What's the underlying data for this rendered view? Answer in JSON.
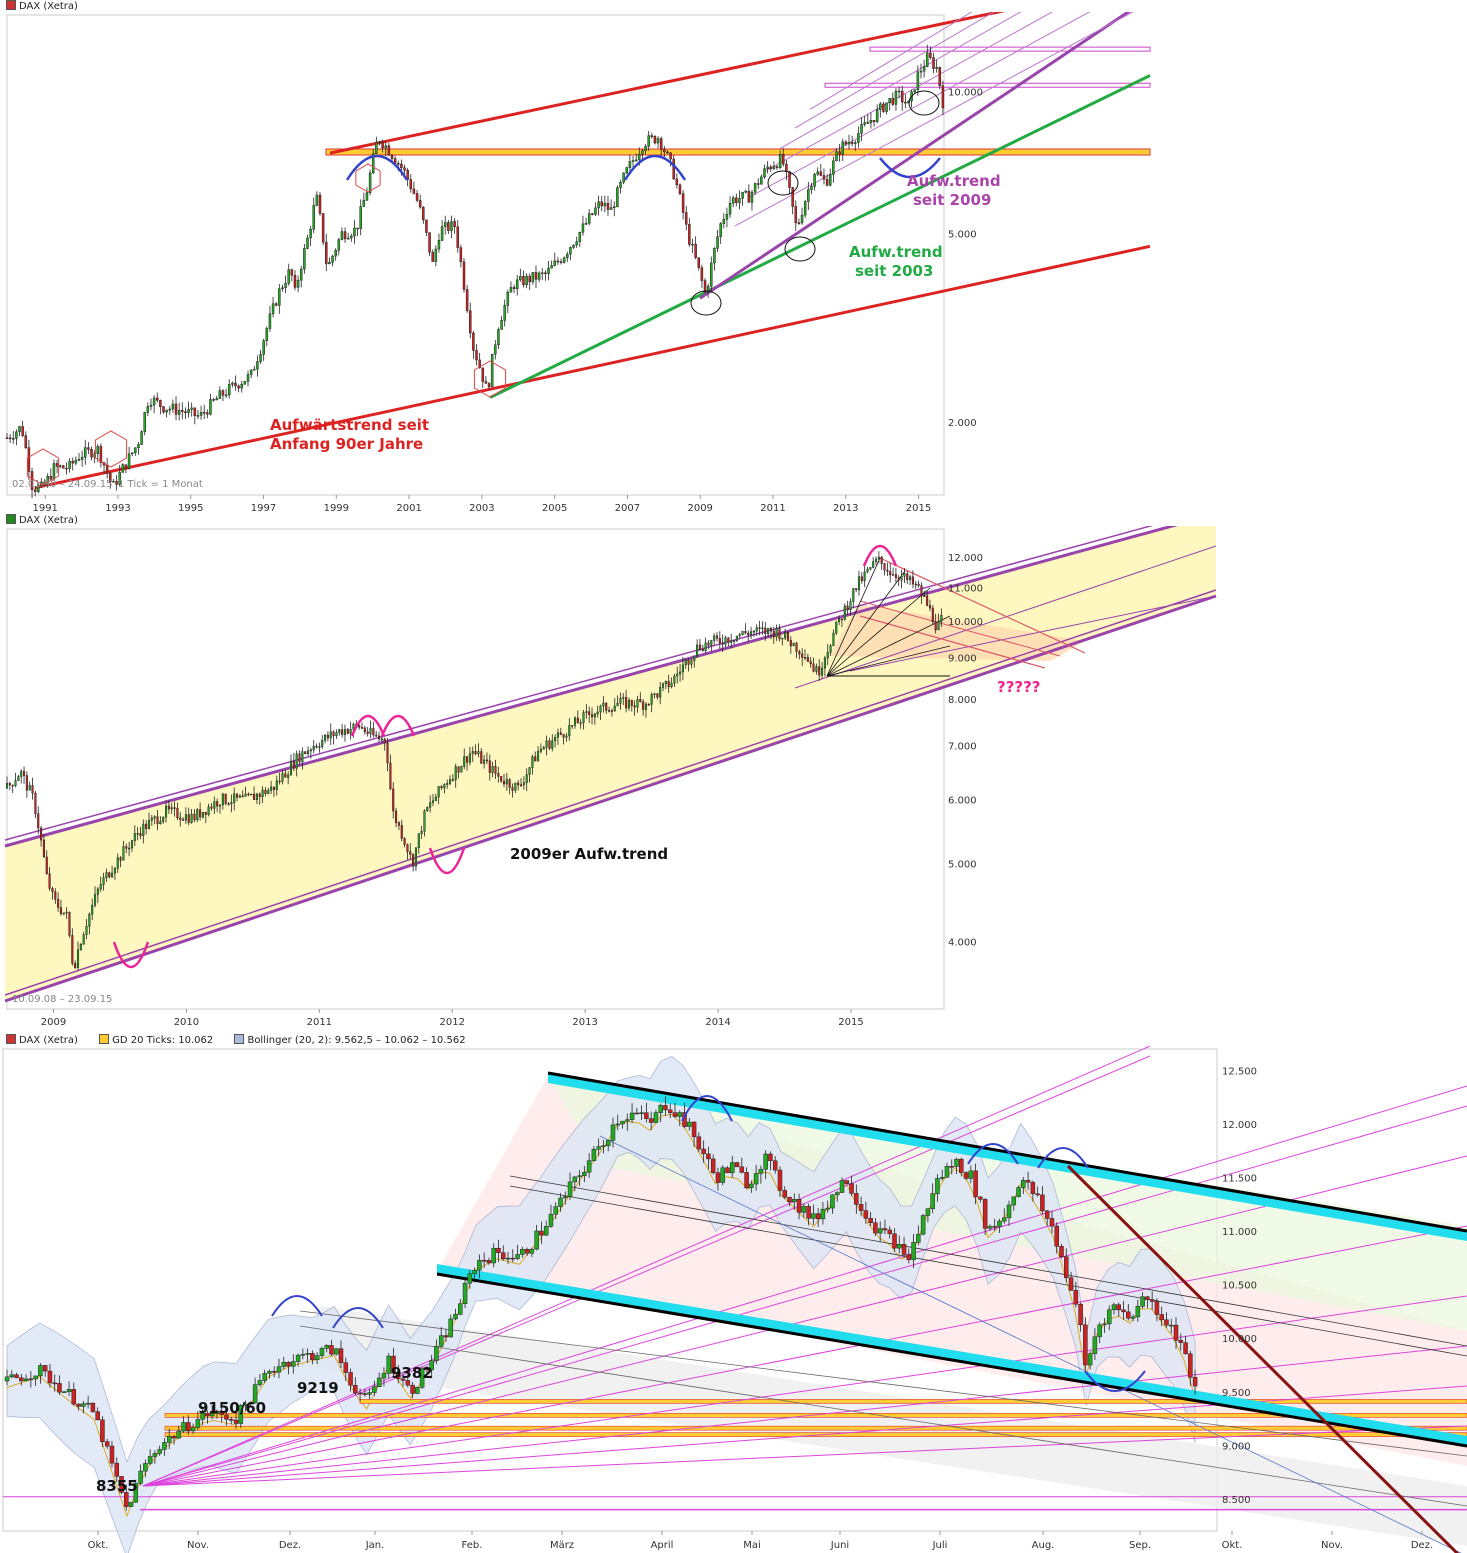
{
  "colors": {
    "candle_up": "#22aa22",
    "candle_down": "#cc2222",
    "trend_red": "#dd2222",
    "trend_purple": "#9944aa",
    "trend_green": "#22aa44",
    "fan_magenta": "#dd44dd",
    "support_fill": "#ffcc33",
    "channel_fill": "#fff7c0",
    "cyan_band": "#22ddee",
    "dark_red": "#881111",
    "arc_blue": "#3344cc",
    "arc_pink": "#ee2299"
  },
  "chart_data": [
    {
      "type": "candlestick",
      "legend": "DAX (Xetra)",
      "date_range": "02.01.90 – 24.09.15",
      "interval": "1 Tick = 1 Monat",
      "scale": "log",
      "x_ticks": [
        "1991",
        "1993",
        "1995",
        "1997",
        "1999",
        "2001",
        "2003",
        "2005",
        "2007",
        "2009",
        "2011",
        "2013",
        "2015"
      ],
      "y_ticks": [
        "10.000",
        "5.000",
        "2.000"
      ],
      "ylim": [
        1400,
        14500
      ],
      "x_range": [
        1990.0,
        2015.75
      ],
      "series": [
        {
          "values": [
            [
              1990.0,
              1850
            ],
            [
              1990.4,
              1950
            ],
            [
              1990.7,
              1450
            ],
            [
              1991.0,
              1450
            ],
            [
              1991.3,
              1600
            ],
            [
              1991.7,
              1600
            ],
            [
              1992.0,
              1700
            ],
            [
              1992.5,
              1750
            ],
            [
              1992.9,
              1450
            ],
            [
              1993.2,
              1600
            ],
            [
              1993.6,
              1800
            ],
            [
              1993.9,
              2250
            ],
            [
              1994.3,
              2150
            ],
            [
              1994.9,
              2100
            ],
            [
              1995.3,
              2050
            ],
            [
              1995.8,
              2250
            ],
            [
              1996.3,
              2400
            ],
            [
              1996.7,
              2500
            ],
            [
              1997.0,
              2900
            ],
            [
              1997.5,
              3800
            ],
            [
              1997.8,
              4200
            ],
            [
              1997.9,
              3700
            ],
            [
              1998.3,
              5000
            ],
            [
              1998.5,
              6000
            ],
            [
              1998.8,
              4200
            ],
            [
              1999.2,
              5000
            ],
            [
              1999.6,
              5100
            ],
            [
              1999.9,
              6200
            ],
            [
              2000.2,
              8000
            ],
            [
              2000.5,
              7500
            ],
            [
              2000.9,
              6800
            ],
            [
              2001.3,
              5800
            ],
            [
              2001.7,
              4300
            ],
            [
              2001.9,
              5100
            ],
            [
              2002.3,
              5200
            ],
            [
              2002.6,
              3700
            ],
            [
              2002.8,
              2900
            ],
            [
              2003.2,
              2300
            ],
            [
              2003.5,
              3200
            ],
            [
              2003.9,
              3900
            ],
            [
              2004.3,
              4000
            ],
            [
              2004.8,
              4100
            ],
            [
              2005.3,
              4500
            ],
            [
              2005.8,
              5100
            ],
            [
              2006.3,
              5800
            ],
            [
              2006.6,
              5600
            ],
            [
              2007.0,
              6700
            ],
            [
              2007.5,
              7800
            ],
            [
              2007.9,
              8000
            ],
            [
              2008.3,
              6800
            ],
            [
              2008.7,
              5000
            ],
            [
              2009.0,
              4200
            ],
            [
              2009.2,
              3700
            ],
            [
              2009.6,
              5200
            ],
            [
              2009.9,
              5900
            ],
            [
              2010.4,
              6000
            ],
            [
              2010.9,
              6900
            ],
            [
              2011.3,
              7200
            ],
            [
              2011.6,
              5600
            ],
            [
              2011.7,
              5100
            ],
            [
              2012.2,
              6800
            ],
            [
              2012.5,
              6400
            ],
            [
              2012.9,
              7600
            ],
            [
              2013.3,
              8000
            ],
            [
              2013.8,
              8800
            ],
            [
              2014.2,
              9500
            ],
            [
              2014.5,
              9800
            ],
            [
              2014.8,
              9300
            ],
            [
              2015.0,
              10700
            ],
            [
              2015.3,
              11800
            ],
            [
              2015.55,
              11200
            ],
            [
              2015.72,
              9500
            ]
          ]
        }
      ],
      "annotations": [
        {
          "text": "Aufwärtstrend seit",
          "color": "#dd2222"
        },
        {
          "text": "Anfang 90er Jahre",
          "color": "#dd2222"
        },
        {
          "text": "Aufw.trend",
          "color": "#aa44aa"
        },
        {
          "text": "seit 2009",
          "color": "#aa44aa"
        },
        {
          "text": "Aufw.trend",
          "color": "#22aa44"
        },
        {
          "text": "seit 2003",
          "color": "#22aa44"
        }
      ]
    },
    {
      "type": "candlestick",
      "legend": "DAX (Xetra)",
      "date_range": "10.09.08 – 23.09.15",
      "scale": "log",
      "x_ticks": [
        "2009",
        "2010",
        "2011",
        "2012",
        "2013",
        "2014",
        "2015"
      ],
      "y_ticks": [
        "12.000",
        "11.000",
        "10.000",
        "9.000",
        "8.000",
        "7.000",
        "6.000",
        "5.000",
        "4.000"
      ],
      "ylim": [
        3300,
        13000
      ],
      "x_range": [
        2008.7,
        2015.75
      ],
      "series": [
        {
          "values": [
            [
              2008.7,
              6200
            ],
            [
              2008.8,
              6500
            ],
            [
              2008.9,
              6000
            ],
            [
              2009.0,
              4800
            ],
            [
              2009.05,
              4500
            ],
            [
              2009.15,
              4300
            ],
            [
              2009.2,
              3700
            ],
            [
              2009.25,
              4000
            ],
            [
              2009.4,
              4700
            ],
            [
              2009.55,
              5100
            ],
            [
              2009.7,
              5500
            ],
            [
              2009.9,
              5800
            ],
            [
              2010.1,
              5700
            ],
            [
              2010.3,
              6000
            ],
            [
              2010.5,
              6000
            ],
            [
              2010.7,
              6200
            ],
            [
              2010.9,
              6800
            ],
            [
              2011.0,
              7000
            ],
            [
              2011.2,
              7300
            ],
            [
              2011.35,
              7400
            ],
            [
              2011.45,
              7200
            ],
            [
              2011.55,
              7100
            ],
            [
              2011.6,
              5800
            ],
            [
              2011.7,
              5300
            ],
            [
              2011.75,
              5000
            ],
            [
              2011.85,
              5800
            ],
            [
              2012.0,
              6300
            ],
            [
              2012.2,
              6900
            ],
            [
              2012.4,
              6400
            ],
            [
              2012.55,
              6200
            ],
            [
              2012.7,
              6900
            ],
            [
              2012.9,
              7300
            ],
            [
              2013.1,
              7700
            ],
            [
              2013.3,
              7900
            ],
            [
              2013.5,
              7900
            ],
            [
              2013.7,
              8400
            ],
            [
              2013.9,
              9300
            ],
            [
              2014.1,
              9500
            ],
            [
              2014.3,
              9700
            ],
            [
              2014.5,
              9700
            ],
            [
              2014.7,
              9100
            ],
            [
              2014.8,
              8600
            ],
            [
              2014.95,
              9900
            ],
            [
              2015.1,
              11100
            ],
            [
              2015.25,
              11900
            ],
            [
              2015.35,
              11500
            ],
            [
              2015.45,
              11300
            ],
            [
              2015.55,
              11000
            ],
            [
              2015.62,
              10500
            ],
            [
              2015.7,
              9800
            ],
            [
              2015.73,
              10000
            ]
          ]
        }
      ],
      "annotations": [
        {
          "text": "?????",
          "color": "#ee2288"
        },
        {
          "text": "2009er Aufw.trend",
          "color": "#111111"
        }
      ]
    },
    {
      "type": "candlestick",
      "legend": "DAX (Xetra)",
      "indicators": [
        "GD 20 Ticks: 10.062",
        "Bollinger (20, 2): 9.562,5 – 10.062 – 10.562"
      ],
      "scale": "linear",
      "x_ticks": [
        "Okt.",
        "Nov.",
        "Dez.",
        "Jan.",
        "Feb.",
        "März",
        "April",
        "Mai",
        "Juni",
        "Juli",
        "Aug.",
        "Sep.",
        "Okt.",
        "Nov.",
        "Dez."
      ],
      "y_ticks": [
        "12.500",
        "12.000",
        "11.500",
        "11.000",
        "10.500",
        "10.000",
        "9.500",
        "9.000",
        "8.500"
      ],
      "ylim": [
        8200,
        12700
      ],
      "series": [
        {
          "values": [
            [
              0,
              9600
            ],
            [
              6,
              9700
            ],
            [
              12,
              9450
            ],
            [
              16,
              9300
            ],
            [
              20,
              8700
            ],
            [
              22,
              8400
            ],
            [
              25,
              8800
            ],
            [
              28,
              9000
            ],
            [
              32,
              9150
            ],
            [
              37,
              9300
            ],
            [
              42,
              9250
            ],
            [
              48,
              9700
            ],
            [
              52,
              9800
            ],
            [
              56,
              9850
            ],
            [
              60,
              9900
            ],
            [
              63,
              9600
            ],
            [
              66,
              9400
            ],
            [
              70,
              9800
            ],
            [
              74,
              9500
            ],
            [
              78,
              9800
            ],
            [
              82,
              10200
            ],
            [
              86,
              10700
            ],
            [
              90,
              10800
            ],
            [
              94,
              10750
            ],
            [
              98,
              11000
            ],
            [
              102,
              11300
            ],
            [
              106,
              11600
            ],
            [
              109,
              11800
            ],
            [
              112,
              12050
            ],
            [
              115,
              12100
            ],
            [
              118,
              12000
            ],
            [
              121,
              12200
            ],
            [
              124,
              12050
            ],
            [
              127,
              11800
            ],
            [
              130,
              11500
            ],
            [
              133,
              11600
            ],
            [
              136,
              11450
            ],
            [
              139,
              11700
            ],
            [
              142,
              11400
            ],
            [
              145,
              11250
            ],
            [
              148,
              11100
            ],
            [
              151,
              11300
            ],
            [
              154,
              11500
            ],
            [
              157,
              11200
            ],
            [
              160,
              11000
            ],
            [
              163,
              10900
            ],
            [
              165,
              10700
            ],
            [
              168,
              11100
            ],
            [
              171,
              11500
            ],
            [
              174,
              11650
            ],
            [
              177,
              11500
            ],
            [
              180,
              11000
            ],
            [
              183,
              11150
            ],
            [
              186,
              11500
            ],
            [
              189,
              11300
            ],
            [
              192,
              11000
            ],
            [
              195,
              10500
            ],
            [
              197,
              10100
            ],
            [
              198,
              9700
            ],
            [
              200,
              10100
            ],
            [
              203,
              10300
            ],
            [
              206,
              10200
            ],
            [
              209,
              10400
            ],
            [
              212,
              10200
            ],
            [
              215,
              10000
            ],
            [
              217,
              9700
            ],
            [
              218,
              9500
            ]
          ]
        }
      ],
      "annotations": [
        {
          "text": "9382"
        },
        {
          "text": "9219"
        },
        {
          "text": "9150/60"
        },
        {
          "text": "8355"
        }
      ]
    }
  ]
}
